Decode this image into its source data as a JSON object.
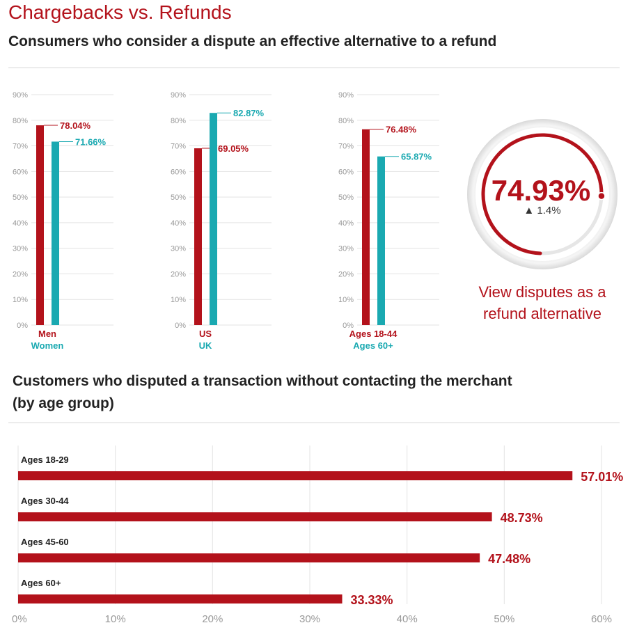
{
  "header": {
    "title": "Chargebacks vs. Refunds",
    "subtitle": "Consumers who consider a dispute an effective alternative to a refund"
  },
  "section2": {
    "title_line1": "Customers who disputed a transaction without contacting the merchant",
    "title_line2": "(by age group)"
  },
  "colors": {
    "red": "#b3121b",
    "teal": "#1aa9b1",
    "grid": "#e3e3e3",
    "tick": "#999999"
  },
  "kpi": {
    "value": "74.93%",
    "percent": 74.93,
    "delta_icon": "up-triangle-icon",
    "delta_symbol": "▲",
    "delta": "1.4%",
    "caption_line1": "View disputes as a",
    "caption_line2": "refund alternative"
  },
  "chart_data": [
    {
      "type": "bar",
      "title": "Consumers who consider a dispute an effective alternative to a refund",
      "ylim": [
        0,
        90
      ],
      "yticks": [
        "0%",
        "10%",
        "20%",
        "30%",
        "40%",
        "50%",
        "60%",
        "70%",
        "80%",
        "90%"
      ],
      "groups": [
        {
          "bars": [
            {
              "label": "Men",
              "value": 78.04,
              "display": "78.04%",
              "color": "#b3121b"
            },
            {
              "label": "Women",
              "value": 71.66,
              "display": "71.66%",
              "color": "#1aa9b1"
            }
          ]
        },
        {
          "bars": [
            {
              "label": "US",
              "value": 69.05,
              "display": "69.05%",
              "color": "#b3121b"
            },
            {
              "label": "UK",
              "value": 82.87,
              "display": "82.87%",
              "color": "#1aa9b1"
            }
          ]
        },
        {
          "bars": [
            {
              "label": "Ages 18-44",
              "value": 76.48,
              "display": "76.48%",
              "color": "#b3121b"
            },
            {
              "label": "Ages 60+",
              "value": 65.87,
              "display": "65.87%",
              "color": "#1aa9b1"
            }
          ]
        }
      ]
    },
    {
      "type": "bar",
      "orientation": "horizontal",
      "title": "Customers who disputed a transaction without contacting the merchant (by age group)",
      "xlim": [
        0,
        60
      ],
      "xticks": [
        "0%",
        "10%",
        "20%",
        "30%",
        "40%",
        "50%",
        "60%"
      ],
      "categories": [
        "Ages 18-29",
        "Ages 30-44",
        "Ages 45-60",
        "Ages 60+"
      ],
      "values": [
        57.01,
        48.73,
        47.48,
        33.33
      ],
      "labels": [
        "57.01%",
        "48.73%",
        "47.48%",
        "33.33%"
      ]
    }
  ]
}
